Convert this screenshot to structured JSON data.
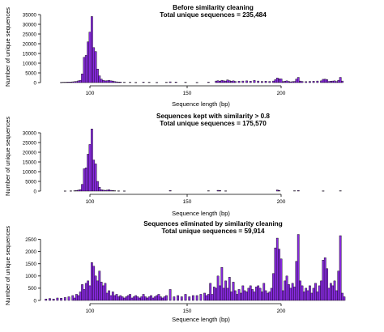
{
  "chart_data": [
    {
      "type": "bar",
      "title": "Before similarity cleaning",
      "subtitle": "Total unique sequences = 235,484",
      "xlabel": "Sequence length (bp)",
      "ylabel": "Number of unique sequences",
      "xlim": [
        75,
        240
      ],
      "ylim": [
        0,
        35000
      ],
      "xticks": [
        "100",
        "150",
        "200"
      ],
      "yticks": [
        "0",
        "5000",
        "10000",
        "15000",
        "20000",
        "25000",
        "30000",
        "35000"
      ],
      "bar_color": "#8A2BE2",
      "bars": [
        {
          "x": 85,
          "value": 150
        },
        {
          "x": 86,
          "value": 200
        },
        {
          "x": 87,
          "value": 200
        },
        {
          "x": 88,
          "value": 250
        },
        {
          "x": 89,
          "value": 300
        },
        {
          "x": 90,
          "value": 300
        },
        {
          "x": 91,
          "value": 400
        },
        {
          "x": 92,
          "value": 500
        },
        {
          "x": 93,
          "value": 600
        },
        {
          "x": 94,
          "value": 900
        },
        {
          "x": 95,
          "value": 1200
        },
        {
          "x": 96,
          "value": 4500
        },
        {
          "x": 97,
          "value": 13000
        },
        {
          "x": 98,
          "value": 14000
        },
        {
          "x": 99,
          "value": 21000
        },
        {
          "x": 100,
          "value": 26000
        },
        {
          "x": 101,
          "value": 34000
        },
        {
          "x": 102,
          "value": 18000
        },
        {
          "x": 103,
          "value": 16000
        },
        {
          "x": 104,
          "value": 7000
        },
        {
          "x": 105,
          "value": 3500
        },
        {
          "x": 106,
          "value": 1800
        },
        {
          "x": 107,
          "value": 1200
        },
        {
          "x": 108,
          "value": 900
        },
        {
          "x": 109,
          "value": 1000
        },
        {
          "x": 110,
          "value": 1200
        },
        {
          "x": 111,
          "value": 900
        },
        {
          "x": 112,
          "value": 800
        },
        {
          "x": 113,
          "value": 500
        },
        {
          "x": 114,
          "value": 400
        },
        {
          "x": 115,
          "value": 300
        },
        {
          "x": 116,
          "value": 300
        },
        {
          "x": 118,
          "value": 200
        },
        {
          "x": 121,
          "value": 200
        },
        {
          "x": 124,
          "value": 150
        },
        {
          "x": 128,
          "value": 250
        },
        {
          "x": 131,
          "value": 200
        },
        {
          "x": 135,
          "value": 150
        },
        {
          "x": 140,
          "value": 200
        },
        {
          "x": 142,
          "value": 400
        },
        {
          "x": 145,
          "value": 300
        },
        {
          "x": 150,
          "value": 200
        },
        {
          "x": 156,
          "value": 150
        },
        {
          "x": 162,
          "value": 250
        },
        {
          "x": 166,
          "value": 800
        },
        {
          "x": 167,
          "value": 1000
        },
        {
          "x": 168,
          "value": 700
        },
        {
          "x": 169,
          "value": 1200
        },
        {
          "x": 170,
          "value": 900
        },
        {
          "x": 171,
          "value": 800
        },
        {
          "x": 172,
          "value": 1400
        },
        {
          "x": 173,
          "value": 1000
        },
        {
          "x": 174,
          "value": 700
        },
        {
          "x": 175,
          "value": 900
        },
        {
          "x": 176,
          "value": 600
        },
        {
          "x": 178,
          "value": 700
        },
        {
          "x": 180,
          "value": 800
        },
        {
          "x": 182,
          "value": 900
        },
        {
          "x": 184,
          "value": 700
        },
        {
          "x": 186,
          "value": 1100
        },
        {
          "x": 188,
          "value": 800
        },
        {
          "x": 190,
          "value": 600
        },
        {
          "x": 192,
          "value": 700
        },
        {
          "x": 194,
          "value": 600
        },
        {
          "x": 196,
          "value": 800
        },
        {
          "x": 197,
          "value": 1500
        },
        {
          "x": 198,
          "value": 2400
        },
        {
          "x": 199,
          "value": 2000
        },
        {
          "x": 200,
          "value": 1900
        },
        {
          "x": 201,
          "value": 500
        },
        {
          "x": 202,
          "value": 700
        },
        {
          "x": 203,
          "value": 900
        },
        {
          "x": 204,
          "value": 600
        },
        {
          "x": 205,
          "value": 400
        },
        {
          "x": 206,
          "value": 500
        },
        {
          "x": 207,
          "value": 600
        },
        {
          "x": 208,
          "value": 1800
        },
        {
          "x": 209,
          "value": 2700
        },
        {
          "x": 210,
          "value": 800
        },
        {
          "x": 211,
          "value": 600
        },
        {
          "x": 213,
          "value": 500
        },
        {
          "x": 215,
          "value": 600
        },
        {
          "x": 217,
          "value": 700
        },
        {
          "x": 219,
          "value": 800
        },
        {
          "x": 221,
          "value": 900
        },
        {
          "x": 222,
          "value": 1700
        },
        {
          "x": 223,
          "value": 1800
        },
        {
          "x": 224,
          "value": 1500
        },
        {
          "x": 225,
          "value": 600
        },
        {
          "x": 226,
          "value": 700
        },
        {
          "x": 227,
          "value": 800
        },
        {
          "x": 228,
          "value": 900
        },
        {
          "x": 229,
          "value": 500
        },
        {
          "x": 230,
          "value": 1200
        },
        {
          "x": 231,
          "value": 2700
        },
        {
          "x": 232,
          "value": 800
        }
      ]
    },
    {
      "type": "bar",
      "title": "Sequences kept with similarity > 0.8",
      "subtitle": "Total unique sequences = 175,570",
      "xlabel": "Sequence length (bp)",
      "ylabel": "Number of unique sequences",
      "xlim": [
        75,
        240
      ],
      "ylim": [
        0,
        35000
      ],
      "xticks": [
        "100",
        "150",
        "200"
      ],
      "yticks": [
        "0",
        "5000",
        "10000",
        "15000",
        "20000",
        "25000",
        "30000"
      ],
      "bar_color": "#8A2BE2",
      "bars": [
        {
          "x": 87,
          "value": 100
        },
        {
          "x": 90,
          "value": 150
        },
        {
          "x": 92,
          "value": 200
        },
        {
          "x": 93,
          "value": 300
        },
        {
          "x": 94,
          "value": 500
        },
        {
          "x": 95,
          "value": 800
        },
        {
          "x": 96,
          "value": 3500
        },
        {
          "x": 97,
          "value": 11500
        },
        {
          "x": 98,
          "value": 12000
        },
        {
          "x": 99,
          "value": 19000
        },
        {
          "x": 100,
          "value": 24000
        },
        {
          "x": 101,
          "value": 32000
        },
        {
          "x": 102,
          "value": 16000
        },
        {
          "x": 103,
          "value": 14000
        },
        {
          "x": 104,
          "value": 5000
        },
        {
          "x": 105,
          "value": 2000
        },
        {
          "x": 106,
          "value": 700
        },
        {
          "x": 107,
          "value": 500
        },
        {
          "x": 108,
          "value": 400
        },
        {
          "x": 109,
          "value": 500
        },
        {
          "x": 110,
          "value": 700
        },
        {
          "x": 111,
          "value": 400
        },
        {
          "x": 112,
          "value": 300
        },
        {
          "x": 113,
          "value": 200
        },
        {
          "x": 115,
          "value": 150
        },
        {
          "x": 118,
          "value": 100
        },
        {
          "x": 142,
          "value": 300
        },
        {
          "x": 162,
          "value": 200
        },
        {
          "x": 167,
          "value": 400
        },
        {
          "x": 168,
          "value": 300
        },
        {
          "x": 171,
          "value": 150
        },
        {
          "x": 198,
          "value": 600
        },
        {
          "x": 199,
          "value": 300
        },
        {
          "x": 207,
          "value": 200
        },
        {
          "x": 209,
          "value": 300
        },
        {
          "x": 222,
          "value": 150
        },
        {
          "x": 231,
          "value": 200
        }
      ]
    },
    {
      "type": "bar",
      "title": "Sequences eliminated by similarity cleaning",
      "subtitle": "Total unique sequences = 59,914",
      "xlabel": "Sequence length (bp)",
      "ylabel": "Number of unique sequences",
      "xlim": [
        75,
        240
      ],
      "ylim": [
        0,
        2750
      ],
      "xticks": [
        "100",
        "150",
        "200"
      ],
      "yticks": [
        "0",
        "500",
        "1000",
        "1500",
        "2000",
        "2500"
      ],
      "bar_color": "#8A2BE2",
      "bars": [
        {
          "x": 77,
          "value": 60
        },
        {
          "x": 79,
          "value": 80
        },
        {
          "x": 81,
          "value": 60
        },
        {
          "x": 83,
          "value": 100
        },
        {
          "x": 85,
          "value": 90
        },
        {
          "x": 87,
          "value": 120
        },
        {
          "x": 89,
          "value": 150
        },
        {
          "x": 91,
          "value": 200
        },
        {
          "x": 92,
          "value": 100
        },
        {
          "x": 93,
          "value": 250
        },
        {
          "x": 94,
          "value": 200
        },
        {
          "x": 95,
          "value": 350
        },
        {
          "x": 96,
          "value": 650
        },
        {
          "x": 97,
          "value": 450
        },
        {
          "x": 98,
          "value": 700
        },
        {
          "x": 99,
          "value": 800
        },
        {
          "x": 100,
          "value": 600
        },
        {
          "x": 101,
          "value": 1550
        },
        {
          "x": 102,
          "value": 1400
        },
        {
          "x": 103,
          "value": 1000
        },
        {
          "x": 104,
          "value": 800
        },
        {
          "x": 105,
          "value": 1200
        },
        {
          "x": 106,
          "value": 750
        },
        {
          "x": 107,
          "value": 600
        },
        {
          "x": 108,
          "value": 700
        },
        {
          "x": 109,
          "value": 300
        },
        {
          "x": 110,
          "value": 400
        },
        {
          "x": 111,
          "value": 200
        },
        {
          "x": 112,
          "value": 350
        },
        {
          "x": 113,
          "value": 200
        },
        {
          "x": 114,
          "value": 250
        },
        {
          "x": 115,
          "value": 150
        },
        {
          "x": 116,
          "value": 200
        },
        {
          "x": 117,
          "value": 150
        },
        {
          "x": 118,
          "value": 100
        },
        {
          "x": 119,
          "value": 150
        },
        {
          "x": 120,
          "value": 200
        },
        {
          "x": 121,
          "value": 250
        },
        {
          "x": 122,
          "value": 100
        },
        {
          "x": 123,
          "value": 150
        },
        {
          "x": 124,
          "value": 200
        },
        {
          "x": 125,
          "value": 150
        },
        {
          "x": 126,
          "value": 100
        },
        {
          "x": 127,
          "value": 150
        },
        {
          "x": 128,
          "value": 250
        },
        {
          "x": 129,
          "value": 150
        },
        {
          "x": 130,
          "value": 100
        },
        {
          "x": 131,
          "value": 150
        },
        {
          "x": 132,
          "value": 200
        },
        {
          "x": 133,
          "value": 100
        },
        {
          "x": 134,
          "value": 150
        },
        {
          "x": 135,
          "value": 200
        },
        {
          "x": 136,
          "value": 250
        },
        {
          "x": 137,
          "value": 150
        },
        {
          "x": 138,
          "value": 100
        },
        {
          "x": 139,
          "value": 150
        },
        {
          "x": 140,
          "value": 200
        },
        {
          "x": 142,
          "value": 450
        },
        {
          "x": 144,
          "value": 150
        },
        {
          "x": 146,
          "value": 200
        },
        {
          "x": 148,
          "value": 150
        },
        {
          "x": 150,
          "value": 250
        },
        {
          "x": 152,
          "value": 150
        },
        {
          "x": 154,
          "value": 200
        },
        {
          "x": 156,
          "value": 200
        },
        {
          "x": 158,
          "value": 250
        },
        {
          "x": 160,
          "value": 300
        },
        {
          "x": 161,
          "value": 200
        },
        {
          "x": 162,
          "value": 250
        },
        {
          "x": 163,
          "value": 700
        },
        {
          "x": 164,
          "value": 250
        },
        {
          "x": 165,
          "value": 550
        },
        {
          "x": 166,
          "value": 500
        },
        {
          "x": 167,
          "value": 1000
        },
        {
          "x": 168,
          "value": 600
        },
        {
          "x": 169,
          "value": 1350
        },
        {
          "x": 170,
          "value": 500
        },
        {
          "x": 171,
          "value": 800
        },
        {
          "x": 172,
          "value": 500
        },
        {
          "x": 173,
          "value": 950
        },
        {
          "x": 174,
          "value": 350
        },
        {
          "x": 175,
          "value": 750
        },
        {
          "x": 176,
          "value": 400
        },
        {
          "x": 177,
          "value": 250
        },
        {
          "x": 178,
          "value": 450
        },
        {
          "x": 179,
          "value": 300
        },
        {
          "x": 180,
          "value": 600
        },
        {
          "x": 181,
          "value": 400
        },
        {
          "x": 182,
          "value": 350
        },
        {
          "x": 183,
          "value": 500
        },
        {
          "x": 184,
          "value": 600
        },
        {
          "x": 185,
          "value": 450
        },
        {
          "x": 186,
          "value": 350
        },
        {
          "x": 187,
          "value": 550
        },
        {
          "x": 188,
          "value": 600
        },
        {
          "x": 189,
          "value": 500
        },
        {
          "x": 190,
          "value": 350
        },
        {
          "x": 191,
          "value": 700
        },
        {
          "x": 192,
          "value": 400
        },
        {
          "x": 193,
          "value": 300
        },
        {
          "x": 194,
          "value": 350
        },
        {
          "x": 195,
          "value": 500
        },
        {
          "x": 196,
          "value": 1100
        },
        {
          "x": 197,
          "value": 2150
        },
        {
          "x": 198,
          "value": 2550
        },
        {
          "x": 199,
          "value": 2100
        },
        {
          "x": 200,
          "value": 1700
        },
        {
          "x": 201,
          "value": 400
        },
        {
          "x": 202,
          "value": 800
        },
        {
          "x": 203,
          "value": 1000
        },
        {
          "x": 204,
          "value": 650
        },
        {
          "x": 205,
          "value": 500
        },
        {
          "x": 206,
          "value": 700
        },
        {
          "x": 207,
          "value": 550
        },
        {
          "x": 208,
          "value": 1600
        },
        {
          "x": 209,
          "value": 2700
        },
        {
          "x": 210,
          "value": 800
        },
        {
          "x": 211,
          "value": 600
        },
        {
          "x": 212,
          "value": 350
        },
        {
          "x": 213,
          "value": 500
        },
        {
          "x": 214,
          "value": 400
        },
        {
          "x": 215,
          "value": 600
        },
        {
          "x": 216,
          "value": 300
        },
        {
          "x": 217,
          "value": 500
        },
        {
          "x": 218,
          "value": 700
        },
        {
          "x": 219,
          "value": 350
        },
        {
          "x": 220,
          "value": 600
        },
        {
          "x": 221,
          "value": 800
        },
        {
          "x": 222,
          "value": 1650
        },
        {
          "x": 223,
          "value": 1750
        },
        {
          "x": 224,
          "value": 1300
        },
        {
          "x": 225,
          "value": 500
        },
        {
          "x": 226,
          "value": 700
        },
        {
          "x": 227,
          "value": 600
        },
        {
          "x": 228,
          "value": 800
        },
        {
          "x": 229,
          "value": 400
        },
        {
          "x": 230,
          "value": 1200
        },
        {
          "x": 231,
          "value": 2650
        },
        {
          "x": 232,
          "value": 300
        },
        {
          "x": 233,
          "value": 150
        }
      ]
    }
  ]
}
